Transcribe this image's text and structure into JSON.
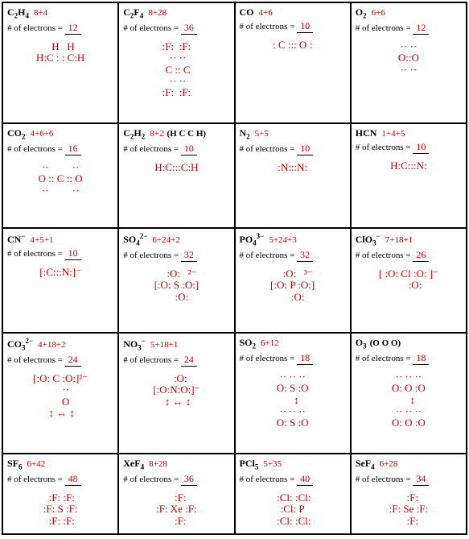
{
  "labels": {
    "electrons_prefix": "# of electrons ="
  },
  "colors": {
    "handwriting": "#cc0000",
    "print": "#000000",
    "underline": "#000000",
    "border": "#000000",
    "background": "#ffffff"
  },
  "cells": [
    {
      "formula_html": "C<sub>2</sub>H<sub>4</sub>",
      "calc": "8+4",
      "electrons": "12",
      "lewis": "  H   H\nH:C : : C:H",
      "hint": ""
    },
    {
      "formula_html": "C<sub>2</sub>F<sub>4</sub>",
      "calc": "8+28",
      "electrons": "36",
      "lewis": ":F:  :F:\n ·· ··\n C :: C\n ·· ··\n:F:  :F:",
      "hint": ""
    },
    {
      "formula_html": "CO",
      "calc": "4+6",
      "electrons": "10",
      "lewis": ": C ::: O :",
      "hint": ""
    },
    {
      "formula_html": "O<sub>2</sub>",
      "calc": "6+6",
      "electrons": "12",
      "lewis": "·· ··\nO::O\n·· ··",
      "hint": ""
    },
    {
      "formula_html": "CO<sub>2</sub>",
      "calc": "4+6+6",
      "electrons": "16",
      "lewis": "··         ··\nO :: C :: O\n··         ··",
      "hint": ""
    },
    {
      "formula_html": "C<sub>2</sub>H<sub>2</sub>",
      "calc": "8+2",
      "electrons": "10",
      "lewis": "H:C:::C:H",
      "hint": "(H C C H)"
    },
    {
      "formula_html": "N<sub>2</sub>",
      "calc": "5+5",
      "electrons": "10",
      "lewis": ":N:::N:",
      "hint": ""
    },
    {
      "formula_html": "HCN",
      "calc": "1+4+5",
      "electrons": "10",
      "lewis": "H:C:::N:",
      "hint": ""
    },
    {
      "formula_html": "CN<sup>−</sup>",
      "calc": "4+5+1",
      "electrons": "10",
      "lewis": "[:C:::N:]⁻",
      "hint": ""
    },
    {
      "formula_html": "SO<sub>4</sub><sup>2−</sup>",
      "calc": "6+24+2",
      "electrons": "32",
      "lewis": "    :O:   ²⁻\n[:O: S :O:]\n    :O:",
      "hint": ""
    },
    {
      "formula_html": "PO<sub>4</sub><sup>3−</sup>",
      "calc": "5+24+3",
      "electrons": "32",
      "lewis": "    :O:   ³⁻\n[:O: P :O:]\n    :O:",
      "hint": ""
    },
    {
      "formula_html": "ClO<sub>3</sub><sup>−</sup>",
      "calc": "7+18+1",
      "electrons": "26",
      "lewis": "[ :O: Cl :O: ]⁻\n     :O:",
      "hint": ""
    },
    {
      "formula_html": "CO<sub>3</sub><sup>2−</sup>",
      "calc": "4+18+2",
      "electrons": "24",
      "lewis": "[:O: C :O:]²⁻\n    ··\n    O\n ↕ ↔ ↕",
      "hint": ""
    },
    {
      "formula_html": "NO<sub>3</sub><sup>−</sup>",
      "calc": "5+18+1",
      "electrons": "24",
      "lewis": "   :O:\n[:O:N:O:]⁻\n ↕ ↔ ↕",
      "hint": ""
    },
    {
      "formula_html": "SO<sub>2</sub>",
      "calc": "6+12",
      "electrons": "18",
      "lewis": "·· ·· ··\nO: S :O\n   ↕\n·· ·· ··\nO: S :O",
      "hint": ""
    },
    {
      "formula_html": "O<sub>3</sub>",
      "calc": "",
      "electrons": "18",
      "lewis": "·· ·· ··\nO: O :O\n   ↕\n·· ·· ··\nO: O :O",
      "hint": "(O O O)"
    },
    {
      "formula_html": "SF<sub>6</sub>",
      "calc": "6+42",
      "electrons": "48",
      "lewis": " :F: :F:\n:F: S :F:\n :F: :F:",
      "hint": ""
    },
    {
      "formula_html": "XeF<sub>4</sub>",
      "calc": "8+28",
      "electrons": "36",
      "lewis": "   :F:\n:F: Xe :F:\n   :F:",
      "hint": ""
    },
    {
      "formula_html": "PCl<sub>5</sub>",
      "calc": "5+35",
      "electrons": "40",
      "lewis": " :Cl: :Cl:\n:Cl: P\n :Cl: :Cl:",
      "hint": ""
    },
    {
      "formula_html": "SeF<sub>4</sub>",
      "calc": "6+28",
      "electrons": "34",
      "lewis": "   :F:\n:F: Se :F:\n   :F:",
      "hint": ""
    }
  ]
}
